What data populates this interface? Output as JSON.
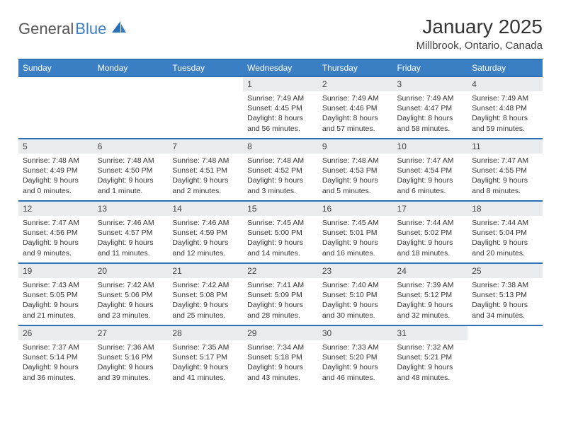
{
  "logo": {
    "part1": "General",
    "part2": "Blue"
  },
  "header": {
    "month_title": "January 2025",
    "location": "Millbrook, Ontario, Canada"
  },
  "style": {
    "accent_color": "#3a7fc4",
    "accent_border": "#2b6fb4",
    "daynum_bg": "#e9ecef",
    "text_color": "#333333",
    "bg_color": "#ffffff",
    "header_text_color": "#ffffff",
    "font_family": "Arial",
    "title_fontsize_pt": 21,
    "location_fontsize_pt": 11,
    "weekday_fontsize_pt": 9,
    "cell_fontsize_pt": 8
  },
  "weekdays": [
    "Sunday",
    "Monday",
    "Tuesday",
    "Wednesday",
    "Thursday",
    "Friday",
    "Saturday"
  ],
  "weeks": [
    [
      null,
      null,
      null,
      {
        "n": "1",
        "sunrise": "Sunrise: 7:49 AM",
        "sunset": "Sunset: 4:45 PM",
        "day1": "Daylight: 8 hours",
        "day2": "and 56 minutes."
      },
      {
        "n": "2",
        "sunrise": "Sunrise: 7:49 AM",
        "sunset": "Sunset: 4:46 PM",
        "day1": "Daylight: 8 hours",
        "day2": "and 57 minutes."
      },
      {
        "n": "3",
        "sunrise": "Sunrise: 7:49 AM",
        "sunset": "Sunset: 4:47 PM",
        "day1": "Daylight: 8 hours",
        "day2": "and 58 minutes."
      },
      {
        "n": "4",
        "sunrise": "Sunrise: 7:49 AM",
        "sunset": "Sunset: 4:48 PM",
        "day1": "Daylight: 8 hours",
        "day2": "and 59 minutes."
      }
    ],
    [
      {
        "n": "5",
        "sunrise": "Sunrise: 7:48 AM",
        "sunset": "Sunset: 4:49 PM",
        "day1": "Daylight: 9 hours",
        "day2": "and 0 minutes."
      },
      {
        "n": "6",
        "sunrise": "Sunrise: 7:48 AM",
        "sunset": "Sunset: 4:50 PM",
        "day1": "Daylight: 9 hours",
        "day2": "and 1 minute."
      },
      {
        "n": "7",
        "sunrise": "Sunrise: 7:48 AM",
        "sunset": "Sunset: 4:51 PM",
        "day1": "Daylight: 9 hours",
        "day2": "and 2 minutes."
      },
      {
        "n": "8",
        "sunrise": "Sunrise: 7:48 AM",
        "sunset": "Sunset: 4:52 PM",
        "day1": "Daylight: 9 hours",
        "day2": "and 3 minutes."
      },
      {
        "n": "9",
        "sunrise": "Sunrise: 7:48 AM",
        "sunset": "Sunset: 4:53 PM",
        "day1": "Daylight: 9 hours",
        "day2": "and 5 minutes."
      },
      {
        "n": "10",
        "sunrise": "Sunrise: 7:47 AM",
        "sunset": "Sunset: 4:54 PM",
        "day1": "Daylight: 9 hours",
        "day2": "and 6 minutes."
      },
      {
        "n": "11",
        "sunrise": "Sunrise: 7:47 AM",
        "sunset": "Sunset: 4:55 PM",
        "day1": "Daylight: 9 hours",
        "day2": "and 8 minutes."
      }
    ],
    [
      {
        "n": "12",
        "sunrise": "Sunrise: 7:47 AM",
        "sunset": "Sunset: 4:56 PM",
        "day1": "Daylight: 9 hours",
        "day2": "and 9 minutes."
      },
      {
        "n": "13",
        "sunrise": "Sunrise: 7:46 AM",
        "sunset": "Sunset: 4:57 PM",
        "day1": "Daylight: 9 hours",
        "day2": "and 11 minutes."
      },
      {
        "n": "14",
        "sunrise": "Sunrise: 7:46 AM",
        "sunset": "Sunset: 4:59 PM",
        "day1": "Daylight: 9 hours",
        "day2": "and 12 minutes."
      },
      {
        "n": "15",
        "sunrise": "Sunrise: 7:45 AM",
        "sunset": "Sunset: 5:00 PM",
        "day1": "Daylight: 9 hours",
        "day2": "and 14 minutes."
      },
      {
        "n": "16",
        "sunrise": "Sunrise: 7:45 AM",
        "sunset": "Sunset: 5:01 PM",
        "day1": "Daylight: 9 hours",
        "day2": "and 16 minutes."
      },
      {
        "n": "17",
        "sunrise": "Sunrise: 7:44 AM",
        "sunset": "Sunset: 5:02 PM",
        "day1": "Daylight: 9 hours",
        "day2": "and 18 minutes."
      },
      {
        "n": "18",
        "sunrise": "Sunrise: 7:44 AM",
        "sunset": "Sunset: 5:04 PM",
        "day1": "Daylight: 9 hours",
        "day2": "and 20 minutes."
      }
    ],
    [
      {
        "n": "19",
        "sunrise": "Sunrise: 7:43 AM",
        "sunset": "Sunset: 5:05 PM",
        "day1": "Daylight: 9 hours",
        "day2": "and 21 minutes."
      },
      {
        "n": "20",
        "sunrise": "Sunrise: 7:42 AM",
        "sunset": "Sunset: 5:06 PM",
        "day1": "Daylight: 9 hours",
        "day2": "and 23 minutes."
      },
      {
        "n": "21",
        "sunrise": "Sunrise: 7:42 AM",
        "sunset": "Sunset: 5:08 PM",
        "day1": "Daylight: 9 hours",
        "day2": "and 25 minutes."
      },
      {
        "n": "22",
        "sunrise": "Sunrise: 7:41 AM",
        "sunset": "Sunset: 5:09 PM",
        "day1": "Daylight: 9 hours",
        "day2": "and 28 minutes."
      },
      {
        "n": "23",
        "sunrise": "Sunrise: 7:40 AM",
        "sunset": "Sunset: 5:10 PM",
        "day1": "Daylight: 9 hours",
        "day2": "and 30 minutes."
      },
      {
        "n": "24",
        "sunrise": "Sunrise: 7:39 AM",
        "sunset": "Sunset: 5:12 PM",
        "day1": "Daylight: 9 hours",
        "day2": "and 32 minutes."
      },
      {
        "n": "25",
        "sunrise": "Sunrise: 7:38 AM",
        "sunset": "Sunset: 5:13 PM",
        "day1": "Daylight: 9 hours",
        "day2": "and 34 minutes."
      }
    ],
    [
      {
        "n": "26",
        "sunrise": "Sunrise: 7:37 AM",
        "sunset": "Sunset: 5:14 PM",
        "day1": "Daylight: 9 hours",
        "day2": "and 36 minutes."
      },
      {
        "n": "27",
        "sunrise": "Sunrise: 7:36 AM",
        "sunset": "Sunset: 5:16 PM",
        "day1": "Daylight: 9 hours",
        "day2": "and 39 minutes."
      },
      {
        "n": "28",
        "sunrise": "Sunrise: 7:35 AM",
        "sunset": "Sunset: 5:17 PM",
        "day1": "Daylight: 9 hours",
        "day2": "and 41 minutes."
      },
      {
        "n": "29",
        "sunrise": "Sunrise: 7:34 AM",
        "sunset": "Sunset: 5:18 PM",
        "day1": "Daylight: 9 hours",
        "day2": "and 43 minutes."
      },
      {
        "n": "30",
        "sunrise": "Sunrise: 7:33 AM",
        "sunset": "Sunset: 5:20 PM",
        "day1": "Daylight: 9 hours",
        "day2": "and 46 minutes."
      },
      {
        "n": "31",
        "sunrise": "Sunrise: 7:32 AM",
        "sunset": "Sunset: 5:21 PM",
        "day1": "Daylight: 9 hours",
        "day2": "and 48 minutes."
      },
      null
    ]
  ]
}
